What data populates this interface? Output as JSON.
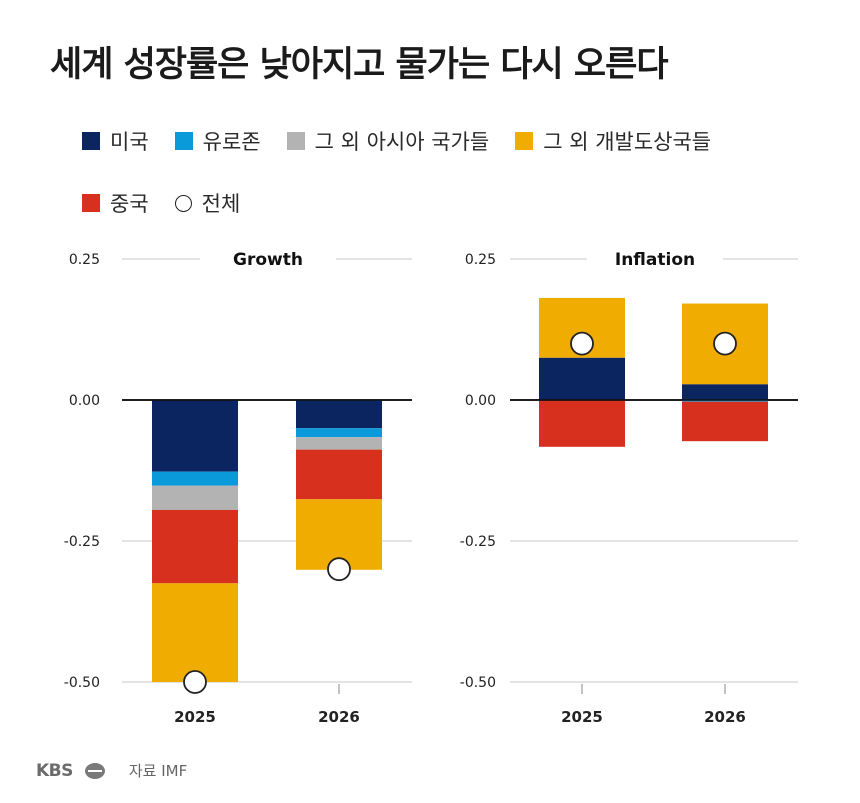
{
  "title": "세계 성장률은 낮아지고 물가는 다시 오른다",
  "legend": [
    {
      "label": "미국",
      "color": "#0b2560",
      "shape": "square"
    },
    {
      "label": "유로존",
      "color": "#0a9ad9",
      "shape": "square"
    },
    {
      "label": "그 외 아시아 국가들",
      "color": "#b3b3b3",
      "shape": "square"
    },
    {
      "label": "그 외 개발도상국들",
      "color": "#f0ac00",
      "shape": "square"
    },
    {
      "label": "중국",
      "color": "#d8301f",
      "shape": "square"
    },
    {
      "label": "전체",
      "color": "#ffffff",
      "shape": "circle"
    }
  ],
  "footer": {
    "logo_text": "KBS",
    "source": "자료 IMF"
  },
  "chart_data": [
    {
      "type": "bar",
      "stacked": true,
      "title": "Growth",
      "categories": [
        "2025",
        "2026"
      ],
      "ylim": [
        -0.5,
        0.25
      ],
      "yticks": [
        "0.25",
        "0.00",
        "-0.25",
        "-0.50"
      ],
      "ytick_values": [
        0.25,
        0.0,
        -0.25,
        -0.5
      ],
      "grid": true,
      "series": [
        {
          "name": "미국",
          "color": "#0b2560",
          "values": [
            -0.127,
            -0.05
          ]
        },
        {
          "name": "유로존",
          "color": "#0a9ad9",
          "values": [
            -0.025,
            -0.016
          ]
        },
        {
          "name": "그 외 아시아 국가들",
          "color": "#b3b3b3",
          "values": [
            -0.043,
            -0.022
          ]
        },
        {
          "name": "중국",
          "color": "#d8301f",
          "values": [
            -0.13,
            -0.088
          ]
        },
        {
          "name": "그 외 개발도상국들",
          "color": "#f0ac00",
          "values": [
            -0.175,
            -0.125
          ]
        }
      ],
      "total": {
        "name": "전체",
        "values": [
          -0.5,
          -0.3
        ]
      }
    },
    {
      "type": "bar",
      "stacked": true,
      "title": "Inflation",
      "categories": [
        "2025",
        "2026"
      ],
      "ylim": [
        -0.5,
        0.25
      ],
      "yticks": [
        "0.25",
        "0.00",
        "-0.25",
        "-0.50"
      ],
      "ytick_values": [
        0.25,
        0.0,
        -0.25,
        -0.5
      ],
      "grid": true,
      "series": [
        {
          "name": "미국",
          "color": "#0b2560",
          "values": [
            0.075,
            0.028
          ]
        },
        {
          "name": "그 외 개발도상국들",
          "color": "#f0ac00",
          "values": [
            0.106,
            0.143
          ]
        },
        {
          "name": "유로존",
          "color": "#0a9ad9",
          "values": [
            0.0,
            -0.003
          ]
        },
        {
          "name": "중국",
          "color": "#d8301f",
          "values": [
            -0.083,
            -0.07
          ]
        }
      ],
      "total": {
        "name": "전체",
        "values": [
          0.1,
          0.1
        ]
      }
    }
  ]
}
